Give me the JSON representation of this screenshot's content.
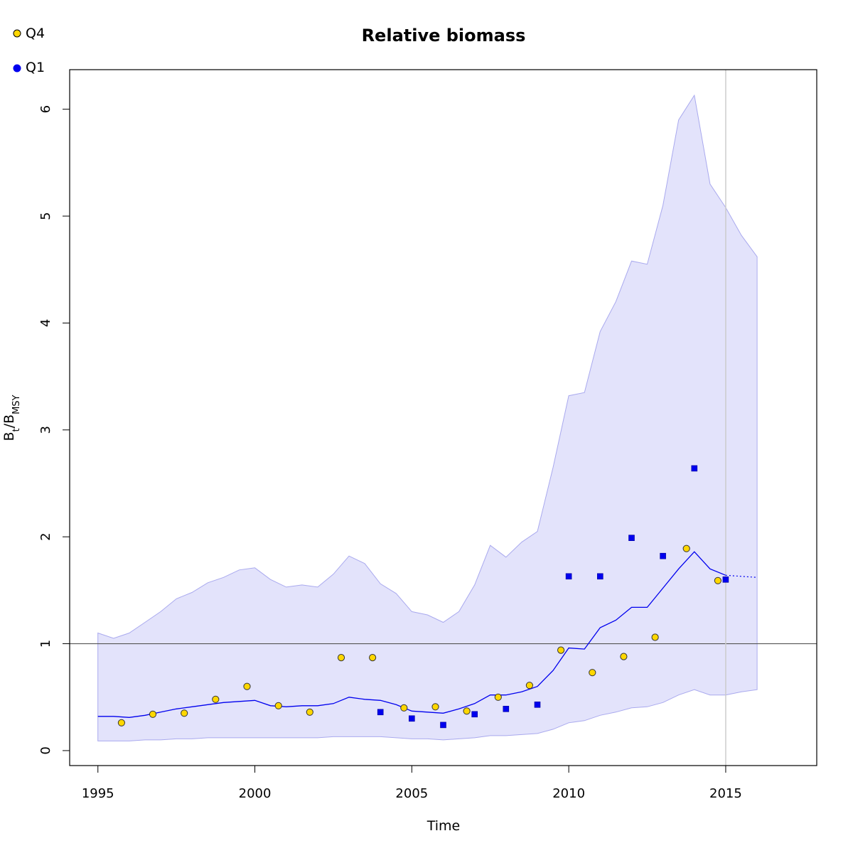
{
  "chart_data": {
    "type": "line",
    "title": "Relative biomass",
    "xlabel": "Time",
    "ylabel_main": "B",
    "ylabel_sub1": "t",
    "ylabel_slash": "/B",
    "ylabel_sub2": "MSY",
    "xlim": [
      1994.1,
      2017.9
    ],
    "ylim": [
      -0.14,
      6.37
    ],
    "x_ticks": [
      1995,
      2000,
      2005,
      2010,
      2015
    ],
    "x_tick_labels": [
      "1995",
      "2000",
      "2005",
      "2010",
      "2015"
    ],
    "y_ticks": [
      0,
      1,
      2,
      3,
      4,
      5,
      6
    ],
    "y_tick_labels": [
      "0",
      "1",
      "2",
      "3",
      "4",
      "5",
      "6"
    ],
    "reference_line_y": 1,
    "current_time_line_x": 2015,
    "grid": false,
    "legend_position": "top-left",
    "colors": {
      "band_fill": "#e3e3fb",
      "band_edge": "#a9a9ee",
      "median_line": "#0000ee",
      "q4_fill": "#ffd700",
      "q1_fill": "#0000ee",
      "reference_line": "#555555",
      "current_line": "#cccccc"
    },
    "series": [
      {
        "name": "Q4",
        "kind": "points",
        "marker": "circle",
        "x": [
          1995.75,
          1996.75,
          1997.75,
          1998.75,
          1999.75,
          2000.75,
          2001.75,
          2002.75,
          2003.75,
          2004.75,
          2005.75,
          2006.75,
          2007.75,
          2008.75,
          2009.75,
          2010.75,
          2011.75,
          2012.75,
          2013.75,
          2014.75
        ],
        "y": [
          0.26,
          0.34,
          0.35,
          0.48,
          0.6,
          0.42,
          0.36,
          0.87,
          0.87,
          0.4,
          0.41,
          0.37,
          0.5,
          0.61,
          0.94,
          0.73,
          0.88,
          1.06,
          1.89,
          1.59
        ]
      },
      {
        "name": "Q1",
        "kind": "points",
        "marker": "square",
        "x": [
          2004,
          2005,
          2006,
          2007,
          2008,
          2009,
          2010,
          2011,
          2012,
          2013,
          2014,
          2015
        ],
        "y": [
          0.36,
          0.3,
          0.24,
          0.34,
          0.39,
          0.43,
          1.63,
          1.63,
          1.99,
          1.82,
          2.64,
          1.6
        ]
      },
      {
        "kind": "median",
        "x": [
          1995,
          1995.5,
          1996,
          1996.5,
          1997,
          1997.5,
          1998,
          1998.5,
          1999,
          1999.5,
          2000,
          2000.5,
          2001,
          2001.5,
          2002,
          2002.5,
          2003,
          2003.5,
          2004,
          2004.5,
          2005,
          2005.5,
          2006,
          2006.5,
          2007,
          2007.5,
          2008,
          2008.5,
          2009,
          2009.5,
          2010,
          2010.5,
          2011,
          2011.5,
          2012,
          2012.5,
          2013,
          2013.5,
          2014,
          2014.5,
          2015
        ],
        "y": [
          0.32,
          0.32,
          0.31,
          0.33,
          0.36,
          0.39,
          0.41,
          0.43,
          0.45,
          0.46,
          0.47,
          0.42,
          0.41,
          0.42,
          0.42,
          0.44,
          0.5,
          0.48,
          0.47,
          0.43,
          0.37,
          0.36,
          0.35,
          0.39,
          0.44,
          0.52,
          0.52,
          0.55,
          0.6,
          0.75,
          0.96,
          0.95,
          1.15,
          1.22,
          1.34,
          1.34,
          1.52,
          1.7,
          1.86,
          1.7,
          1.64
        ]
      },
      {
        "kind": "projection",
        "x": [
          2015,
          2015.5,
          2016
        ],
        "y": [
          1.64,
          1.63,
          1.62
        ]
      },
      {
        "kind": "band_upper",
        "x": [
          1995,
          1995.5,
          1996,
          1996.5,
          1997,
          1997.5,
          1998,
          1998.5,
          1999,
          1999.5,
          2000,
          2000.5,
          2001,
          2001.5,
          2002,
          2002.5,
          2003,
          2003.5,
          2004,
          2004.5,
          2005,
          2005.5,
          2006,
          2006.5,
          2007,
          2007.5,
          2008,
          2008.5,
          2009,
          2009.5,
          2010,
          2010.5,
          2011,
          2011.5,
          2012,
          2012.5,
          2013,
          2013.5,
          2014,
          2014.5,
          2015,
          2015.5,
          2016
        ],
        "y": [
          1.1,
          1.05,
          1.1,
          1.2,
          1.3,
          1.42,
          1.48,
          1.57,
          1.62,
          1.69,
          1.71,
          1.6,
          1.53,
          1.55,
          1.53,
          1.65,
          1.82,
          1.75,
          1.56,
          1.47,
          1.3,
          1.27,
          1.2,
          1.3,
          1.55,
          1.92,
          1.81,
          1.95,
          2.05,
          2.65,
          3.32,
          3.35,
          3.92,
          4.2,
          4.58,
          4.55,
          5.1,
          5.9,
          6.13,
          5.3,
          5.08,
          4.82,
          4.62
        ]
      },
      {
        "kind": "band_lower",
        "x": [
          1995,
          1995.5,
          1996,
          1996.5,
          1997,
          1997.5,
          1998,
          1998.5,
          1999,
          1999.5,
          2000,
          2000.5,
          2001,
          2001.5,
          2002,
          2002.5,
          2003,
          2003.5,
          2004,
          2004.5,
          2005,
          2005.5,
          2006,
          2006.5,
          2007,
          2007.5,
          2008,
          2008.5,
          2009,
          2009.5,
          2010,
          2010.5,
          2011,
          2011.5,
          2012,
          2012.5,
          2013,
          2013.5,
          2014,
          2014.5,
          2015,
          2015.5,
          2016
        ],
        "y": [
          0.09,
          0.09,
          0.09,
          0.1,
          0.1,
          0.11,
          0.11,
          0.12,
          0.12,
          0.12,
          0.12,
          0.12,
          0.12,
          0.12,
          0.12,
          0.13,
          0.13,
          0.13,
          0.13,
          0.12,
          0.11,
          0.11,
          0.1,
          0.11,
          0.12,
          0.14,
          0.14,
          0.15,
          0.16,
          0.2,
          0.26,
          0.28,
          0.33,
          0.36,
          0.4,
          0.41,
          0.45,
          0.52,
          0.57,
          0.52,
          0.52,
          0.55,
          0.57
        ]
      }
    ]
  }
}
